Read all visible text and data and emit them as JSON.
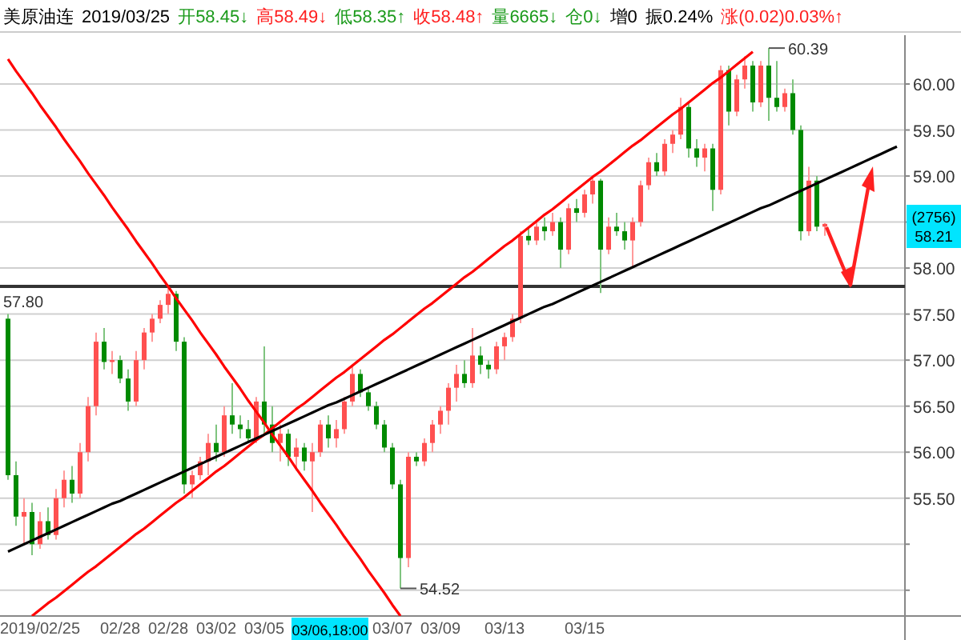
{
  "chart_data": {
    "type": "candlestick",
    "title": "美原油连",
    "annotations": [
      "2019/03/25",
      "开58.45↓",
      "高58.49↓",
      "低58.35↑",
      "收58.48↑",
      "量6665↓",
      "仓0↓",
      "增0",
      "振0.24%",
      "涨(0.02)0.03%↑",
      "60.39",
      "54.52",
      "03/06,18:00",
      "(2756)",
      "58.21"
    ],
    "categories": [
      null,
      null,
      null,
      null,
      "2019/02/25",
      null,
      null,
      null,
      null,
      null,
      null,
      null,
      null,
      null,
      "02/28",
      null,
      null,
      null,
      null,
      null,
      "02/28",
      null,
      null,
      null,
      null,
      null,
      "03/02",
      null,
      null,
      null,
      null,
      null,
      "03/05",
      null,
      null,
      null,
      null,
      null,
      null,
      null,
      null,
      null,
      null,
      null,
      null,
      null,
      null,
      null,
      "03/07",
      null,
      null,
      null,
      null,
      null,
      "03/09",
      null,
      null,
      null,
      null,
      null,
      null,
      null,
      "03/13",
      null,
      null,
      null,
      null,
      null,
      null,
      null,
      null,
      null,
      "03/15",
      null,
      null,
      null,
      null,
      null,
      null,
      null,
      null,
      null,
      null,
      null,
      null,
      null,
      null,
      null,
      null,
      null,
      null,
      null,
      null,
      null,
      null,
      null,
      null,
      null,
      null,
      null,
      null,
      null,
      null,
      null,
      null,
      null,
      null,
      null,
      null,
      null,
      null,
      null
    ],
    "ohlc": [
      [
        57.45,
        57.5,
        55.7,
        55.75
      ],
      [
        55.75,
        55.9,
        55.2,
        55.3
      ],
      [
        55.3,
        55.5,
        55.0,
        55.35
      ],
      [
        55.35,
        55.45,
        54.88,
        55.0
      ],
      [
        55.0,
        55.35,
        54.95,
        55.25
      ],
      [
        55.25,
        55.4,
        55.05,
        55.1
      ],
      [
        55.1,
        55.6,
        55.05,
        55.5
      ],
      [
        55.5,
        55.8,
        55.4,
        55.7
      ],
      [
        55.7,
        55.85,
        55.45,
        55.55
      ],
      [
        55.55,
        56.1,
        55.5,
        56.0
      ],
      [
        56.0,
        56.6,
        55.9,
        56.5
      ],
      [
        56.5,
        57.3,
        56.4,
        57.2
      ],
      [
        57.2,
        57.35,
        56.9,
        56.98
      ],
      [
        56.98,
        57.1,
        56.85,
        57.0
      ],
      [
        57.0,
        57.05,
        56.75,
        56.8
      ],
      [
        56.8,
        56.9,
        56.45,
        56.55
      ],
      [
        56.55,
        57.1,
        56.5,
        57.0
      ],
      [
        57.0,
        57.35,
        56.9,
        57.3
      ],
      [
        57.3,
        57.5,
        57.2,
        57.45
      ],
      [
        57.45,
        57.65,
        57.4,
        57.6
      ],
      [
        57.6,
        57.8,
        57.5,
        57.72
      ],
      [
        57.72,
        57.75,
        57.1,
        57.2
      ],
      [
        57.2,
        57.25,
        55.55,
        55.65
      ],
      [
        55.65,
        55.8,
        55.5,
        55.75
      ],
      [
        55.75,
        55.95,
        55.7,
        55.9
      ],
      [
        55.9,
        56.2,
        55.75,
        56.1
      ],
      [
        56.1,
        56.3,
        55.9,
        56.0
      ],
      [
        56.0,
        56.5,
        55.95,
        56.4
      ],
      [
        56.4,
        56.75,
        56.2,
        56.3
      ],
      [
        56.3,
        56.4,
        56.15,
        56.25
      ],
      [
        56.25,
        56.35,
        56.1,
        56.15
      ],
      [
        56.15,
        56.6,
        56.1,
        56.55
      ],
      [
        56.55,
        57.15,
        56.2,
        56.3
      ],
      [
        56.3,
        56.5,
        56.0,
        56.1
      ],
      [
        56.1,
        56.3,
        55.9,
        56.2
      ],
      [
        56.2,
        56.25,
        55.85,
        55.95
      ],
      [
        55.95,
        56.15,
        55.8,
        56.05
      ],
      [
        56.05,
        56.1,
        55.8,
        55.9
      ],
      [
        55.9,
        56.1,
        55.35,
        56.0
      ],
      [
        56.0,
        56.35,
        55.95,
        56.3
      ],
      [
        56.3,
        56.4,
        56.05,
        56.15
      ],
      [
        56.15,
        56.35,
        56.05,
        56.25
      ],
      [
        56.25,
        56.6,
        56.2,
        56.55
      ],
      [
        56.55,
        56.95,
        56.5,
        56.85
      ],
      [
        56.85,
        56.9,
        56.6,
        56.65
      ],
      [
        56.65,
        56.7,
        56.45,
        56.5
      ],
      [
        56.5,
        56.55,
        56.25,
        56.3
      ],
      [
        56.3,
        56.35,
        56.0,
        56.05
      ],
      [
        56.05,
        56.1,
        55.6,
        55.65
      ],
      [
        55.65,
        55.7,
        54.52,
        54.85
      ],
      [
        54.85,
        56.0,
        54.75,
        55.95
      ],
      [
        55.95,
        56.0,
        55.85,
        55.9
      ],
      [
        55.9,
        56.15,
        55.85,
        56.1
      ],
      [
        56.1,
        56.35,
        56.0,
        56.3
      ],
      [
        56.3,
        56.5,
        56.2,
        56.45
      ],
      [
        56.45,
        56.75,
        56.3,
        56.7
      ],
      [
        56.7,
        56.95,
        56.55,
        56.85
      ],
      [
        56.85,
        57.0,
        56.7,
        56.75
      ],
      [
        56.75,
        57.35,
        56.7,
        57.05
      ],
      [
        57.05,
        57.15,
        56.85,
        56.95
      ],
      [
        56.95,
        57.0,
        56.8,
        56.9
      ],
      [
        56.9,
        57.2,
        56.85,
        57.15
      ],
      [
        57.15,
        57.3,
        57.0,
        57.25
      ],
      [
        57.25,
        57.5,
        57.2,
        57.45
      ],
      [
        57.45,
        58.4,
        57.4,
        58.35
      ],
      [
        58.35,
        58.45,
        58.25,
        58.3
      ],
      [
        58.3,
        58.5,
        58.25,
        58.45
      ],
      [
        58.45,
        58.55,
        58.3,
        58.4
      ],
      [
        58.4,
        58.6,
        58.35,
        58.5
      ],
      [
        58.5,
        58.55,
        58.0,
        58.2
      ],
      [
        58.2,
        58.7,
        58.15,
        58.65
      ],
      [
        58.65,
        58.75,
        58.5,
        58.6
      ],
      [
        58.6,
        58.85,
        58.55,
        58.8
      ],
      [
        58.8,
        59.0,
        58.7,
        58.95
      ],
      [
        58.95,
        58.97,
        57.73,
        58.2
      ],
      [
        58.2,
        58.55,
        58.15,
        58.45
      ],
      [
        58.45,
        58.6,
        58.35,
        58.4
      ],
      [
        58.4,
        58.5,
        58.2,
        58.3
      ],
      [
        58.3,
        58.55,
        58.0,
        58.5
      ],
      [
        58.5,
        58.95,
        58.45,
        58.9
      ],
      [
        58.9,
        59.2,
        58.85,
        59.15
      ],
      [
        59.15,
        59.25,
        59.0,
        59.05
      ],
      [
        59.05,
        59.4,
        59.0,
        59.35
      ],
      [
        59.35,
        59.5,
        59.25,
        59.45
      ],
      [
        59.45,
        59.85,
        59.4,
        59.75
      ],
      [
        59.75,
        59.8,
        59.2,
        59.3
      ],
      [
        59.3,
        59.4,
        59.1,
        59.2
      ],
      [
        59.2,
        59.35,
        59.05,
        59.3
      ],
      [
        59.3,
        59.35,
        58.62,
        58.85
      ],
      [
        58.85,
        60.2,
        58.8,
        60.15
      ],
      [
        60.15,
        60.2,
        59.55,
        59.7
      ],
      [
        59.7,
        60.1,
        59.65,
        60.05
      ],
      [
        60.05,
        60.3,
        59.95,
        60.2
      ],
      [
        60.2,
        60.25,
        59.7,
        59.8
      ],
      [
        59.8,
        60.25,
        59.75,
        60.2
      ],
      [
        60.2,
        60.39,
        59.6,
        59.85
      ],
      [
        59.85,
        60.25,
        59.7,
        59.75
      ],
      [
        59.75,
        59.95,
        59.7,
        59.9
      ],
      [
        59.9,
        60.05,
        59.45,
        59.5
      ],
      [
        59.5,
        59.55,
        58.3,
        58.4
      ],
      [
        58.4,
        59.1,
        58.35,
        58.95
      ],
      [
        58.95,
        59.0,
        58.4,
        58.45
      ],
      [
        58.45,
        58.49,
        58.35,
        58.48
      ],
      null,
      null,
      null,
      null,
      null,
      null,
      null,
      null,
      null
    ],
    "series": [
      {
        "type": "line",
        "color": "#ff0000",
        "values": [
          60.27,
          60.14,
          60.02,
          59.9,
          59.77,
          59.65,
          59.53,
          59.4,
          59.28,
          59.16,
          59.03,
          58.91,
          58.79,
          58.66,
          58.54,
          58.42,
          58.29,
          58.17,
          58.05,
          57.92,
          57.8,
          57.67,
          57.55,
          57.43,
          57.3,
          57.18,
          57.06,
          56.93,
          56.81,
          56.69,
          56.56,
          56.44,
          56.32,
          56.19,
          56.07,
          55.95,
          55.82,
          55.7,
          55.58,
          55.45,
          55.33,
          55.21,
          55.08,
          54.96,
          54.84,
          54.71,
          54.59,
          54.47,
          54.34,
          54.22,
          null,
          null,
          null,
          null,
          null,
          null,
          null,
          null,
          null,
          null,
          null,
          null,
          null,
          null,
          null,
          null,
          null,
          null,
          null,
          null,
          null,
          null,
          null,
          null,
          null,
          null,
          null,
          null,
          null,
          null,
          null,
          null,
          null,
          null,
          null,
          null,
          null,
          null,
          null,
          null,
          null,
          null,
          null,
          null,
          null,
          null,
          null,
          null,
          null,
          null,
          null,
          null,
          null,
          null,
          null,
          null,
          null,
          null,
          null,
          null,
          null,
          null
        ]
      },
      {
        "type": "line",
        "color": "#ff0000",
        "values": [
          null,
          null,
          null,
          54.22,
          54.29,
          54.36,
          54.42,
          54.49,
          54.56,
          54.63,
          54.7,
          54.76,
          54.83,
          54.9,
          54.97,
          55.04,
          55.11,
          55.17,
          55.24,
          55.31,
          55.38,
          55.45,
          55.51,
          55.58,
          55.65,
          55.72,
          55.79,
          55.85,
          55.92,
          55.99,
          56.06,
          56.13,
          56.19,
          56.26,
          56.33,
          56.4,
          56.47,
          56.53,
          56.6,
          56.67,
          56.74,
          56.81,
          56.87,
          56.94,
          57.01,
          57.08,
          57.15,
          57.22,
          57.28,
          57.35,
          57.42,
          57.49,
          57.56,
          57.62,
          57.69,
          57.76,
          57.83,
          57.9,
          57.96,
          58.03,
          58.1,
          58.17,
          58.24,
          58.3,
          58.37,
          58.44,
          58.51,
          58.58,
          58.64,
          58.71,
          58.78,
          58.85,
          58.92,
          58.99,
          59.05,
          59.12,
          59.19,
          59.26,
          59.33,
          59.39,
          59.46,
          59.53,
          59.6,
          59.67,
          59.73,
          59.8,
          59.87,
          59.94,
          60.01,
          60.07,
          60.14,
          60.21,
          60.28,
          60.35,
          null,
          null,
          null,
          null,
          null,
          null,
          null,
          null,
          null,
          null,
          null,
          null,
          null,
          null,
          null,
          null,
          null,
          null
        ]
      },
      {
        "type": "line",
        "color": "#000000",
        "values": [
          54.92,
          54.96,
          55.0,
          55.04,
          55.08,
          55.12,
          55.16,
          55.2,
          55.24,
          55.28,
          55.32,
          55.36,
          55.4,
          55.44,
          55.47,
          55.51,
          55.55,
          55.59,
          55.63,
          55.67,
          55.71,
          55.75,
          55.79,
          55.83,
          55.87,
          55.91,
          55.95,
          55.99,
          56.03,
          56.07,
          56.11,
          56.15,
          56.19,
          56.23,
          56.27,
          56.31,
          56.35,
          56.39,
          56.43,
          56.47,
          56.51,
          56.54,
          56.58,
          56.62,
          56.66,
          56.7,
          56.74,
          56.78,
          56.82,
          56.86,
          56.9,
          56.94,
          56.98,
          57.02,
          57.06,
          57.1,
          57.14,
          57.18,
          57.22,
          57.26,
          57.3,
          57.34,
          57.38,
          57.42,
          57.46,
          57.5,
          57.54,
          57.58,
          57.61,
          57.65,
          57.69,
          57.73,
          57.77,
          57.81,
          57.85,
          57.89,
          57.93,
          57.97,
          58.01,
          58.05,
          58.09,
          58.13,
          58.17,
          58.21,
          58.25,
          58.29,
          58.33,
          58.37,
          58.41,
          58.45,
          58.49,
          58.53,
          58.57,
          58.61,
          58.65,
          58.68,
          58.72,
          58.76,
          58.8,
          58.84,
          58.88,
          58.92,
          58.96,
          59.0,
          59.04,
          59.08,
          59.12,
          59.16,
          59.2,
          59.24,
          59.28,
          59.32
        ]
      }
    ],
    "ref_lines": [
      {
        "axis": "y",
        "value": 57.8,
        "label": "57.80",
        "color": "#333333"
      }
    ],
    "ylim": [
      54.22,
      60.53
    ],
    "yticks": [
      {
        "value": 54.5,
        "label": null
      },
      {
        "value": 55,
        "label": null
      },
      {
        "value": 55.5,
        "label": "55.50"
      },
      {
        "value": 56,
        "label": "56.00"
      },
      {
        "value": 56.5,
        "label": "56.50"
      },
      {
        "value": 57,
        "label": "57.00"
      },
      {
        "value": 57.5,
        "label": "57.50"
      },
      {
        "value": 58,
        "label": "58.00"
      },
      {
        "value": 58.5,
        "label": null
      },
      {
        "value": 59,
        "label": "59.00"
      },
      {
        "value": 59.5,
        "label": "59.50"
      },
      {
        "value": 60,
        "label": "60.00"
      }
    ],
    "grid": "y"
  }
}
